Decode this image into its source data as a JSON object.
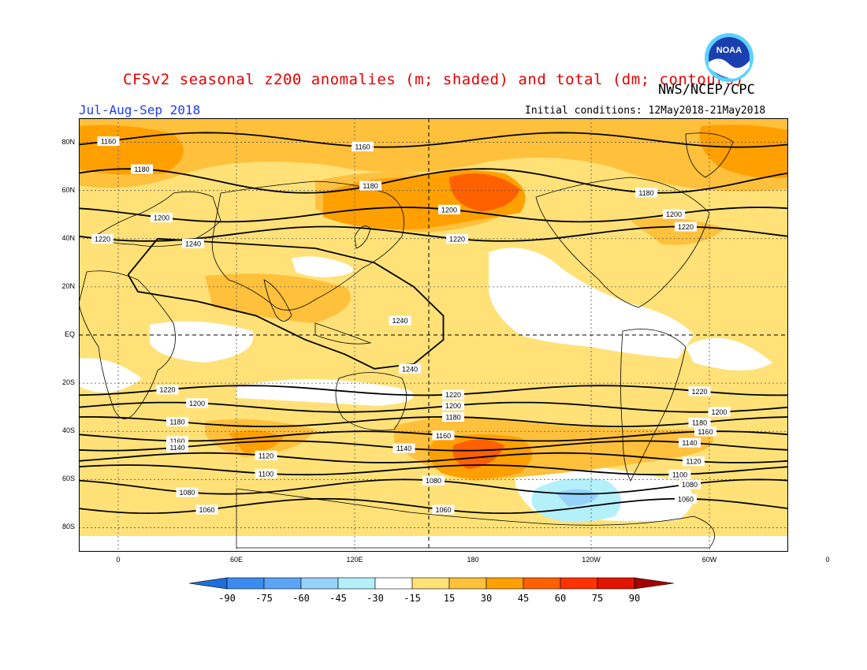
{
  "header": {
    "title": "CFSv2 seasonal z200 anomalies (m; shaded) and total (dm; contours)",
    "org": "NWS/NCEP/CPC",
    "period": "Jul-Aug-Sep 2018",
    "initial_conditions": "Initial conditions: 12May2018-21May2018",
    "logo_text": "NOAA"
  },
  "axes": {
    "lat_labels": [
      "80N",
      "60N",
      "40N",
      "20N",
      "EQ",
      "20S",
      "40S",
      "60S",
      "80S"
    ],
    "lon_labels": [
      "0",
      "60E",
      "120E",
      "180",
      "120W",
      "60W",
      "0"
    ]
  },
  "legend": {
    "ticks": [
      "-90",
      "-75",
      "-60",
      "-45",
      "-30",
      "-15",
      "15",
      "30",
      "45",
      "60",
      "75",
      "90"
    ],
    "colors": [
      "#1e6fdc",
      "#3c8cf0",
      "#5aa5f5",
      "#96d2fa",
      "#b4f0fa",
      "#ffffff",
      "#ffe178",
      "#ffc03c",
      "#ffa000",
      "#ff6000",
      "#ff3200",
      "#e11400",
      "#a50000"
    ]
  },
  "contours": [
    {
      "label": "1160",
      "lat": 81,
      "amp": 3,
      "labels_at": [
        -5,
        124
      ]
    },
    {
      "label": "1180",
      "lat": 64,
      "amp": 5,
      "labels_at": [
        12,
        128,
        268
      ]
    },
    {
      "label": "1200",
      "lat": 50,
      "amp": 3,
      "labels_at": [
        22,
        168,
        282
      ]
    },
    {
      "label": "1220",
      "lat": 42,
      "amp": 3,
      "labels_at": [
        -8,
        172,
        288
      ]
    },
    {
      "label": "1220",
      "lat": -23,
      "amp": 2,
      "labels_at": [
        25,
        170,
        295
      ]
    },
    {
      "label": "1200",
      "lat": -30,
      "amp": 2,
      "labels_at": [
        40,
        170,
        305
      ]
    },
    {
      "label": "1180",
      "lat": -36,
      "amp": 2,
      "labels_at": [
        30,
        170,
        295
      ]
    },
    {
      "label": "1160",
      "lat": -42,
      "amp": 2,
      "labels_at": [
        30,
        165,
        298
      ]
    },
    {
      "label": "1140",
      "lat": -46,
      "amp": 2,
      "labels_at": [
        30,
        145,
        290
      ]
    },
    {
      "label": "1120",
      "lat": -51,
      "amp": 2,
      "labels_at": [
        75,
        292
      ]
    },
    {
      "label": "1100",
      "lat": -56,
      "amp": 2,
      "labels_at": [
        75,
        285
      ]
    },
    {
      "label": "1080",
      "lat": -63,
      "amp": 3,
      "labels_at": [
        35,
        160,
        290
      ]
    },
    {
      "label": "1060",
      "lat": -71,
      "amp": 3,
      "labels_at": [
        45,
        165,
        288
      ]
    }
  ],
  "tropical_contour": {
    "label": "1240",
    "labels_at": [
      [
        38,
        38
      ],
      [
        143,
        6
      ],
      [
        148,
        -14
      ]
    ]
  }
}
